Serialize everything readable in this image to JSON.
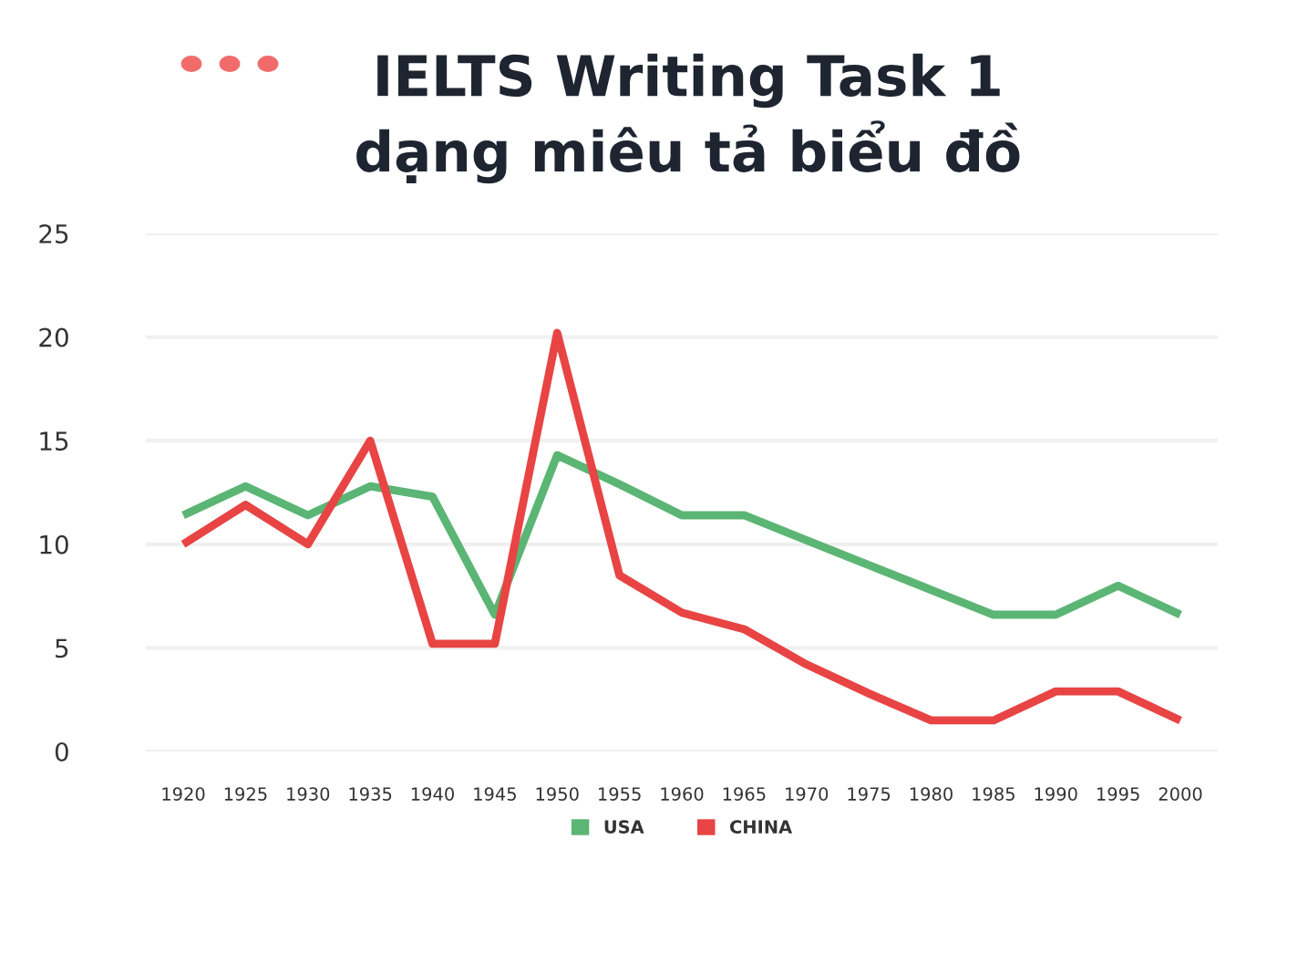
{
  "chart_data": {
    "type": "line",
    "title": "IELTS Writing Task 1\ndạng miêu tả biểu đồ",
    "categories": [
      "1920",
      "1925",
      "1930",
      "1935",
      "1940",
      "1945",
      "1950",
      "1955",
      "1960",
      "1965",
      "1970",
      "1975",
      "1980",
      "1985",
      "1990",
      "1995",
      "2000"
    ],
    "series": [
      {
        "name": "USA",
        "color": "#5bb574",
        "values": [
          11.4,
          12.8,
          11.4,
          12.8,
          12.3,
          6.6,
          14.3,
          12.9,
          11.4,
          11.4,
          10.2,
          9.0,
          7.8,
          6.6,
          6.6,
          8.0,
          6.6
        ]
      },
      {
        "name": "CHINA",
        "color": "#e84444",
        "values": [
          10.0,
          11.9,
          10.0,
          15.0,
          5.2,
          5.2,
          20.2,
          8.5,
          6.7,
          5.9,
          4.2,
          2.8,
          1.5,
          1.5,
          2.9,
          2.9,
          1.5
        ]
      }
    ],
    "ylim": [
      0,
      25
    ],
    "yticks": [
      0,
      5,
      10,
      15,
      20,
      25
    ],
    "grid": "y",
    "legend": "bottom",
    "marker": "none",
    "line_style": "solid"
  }
}
